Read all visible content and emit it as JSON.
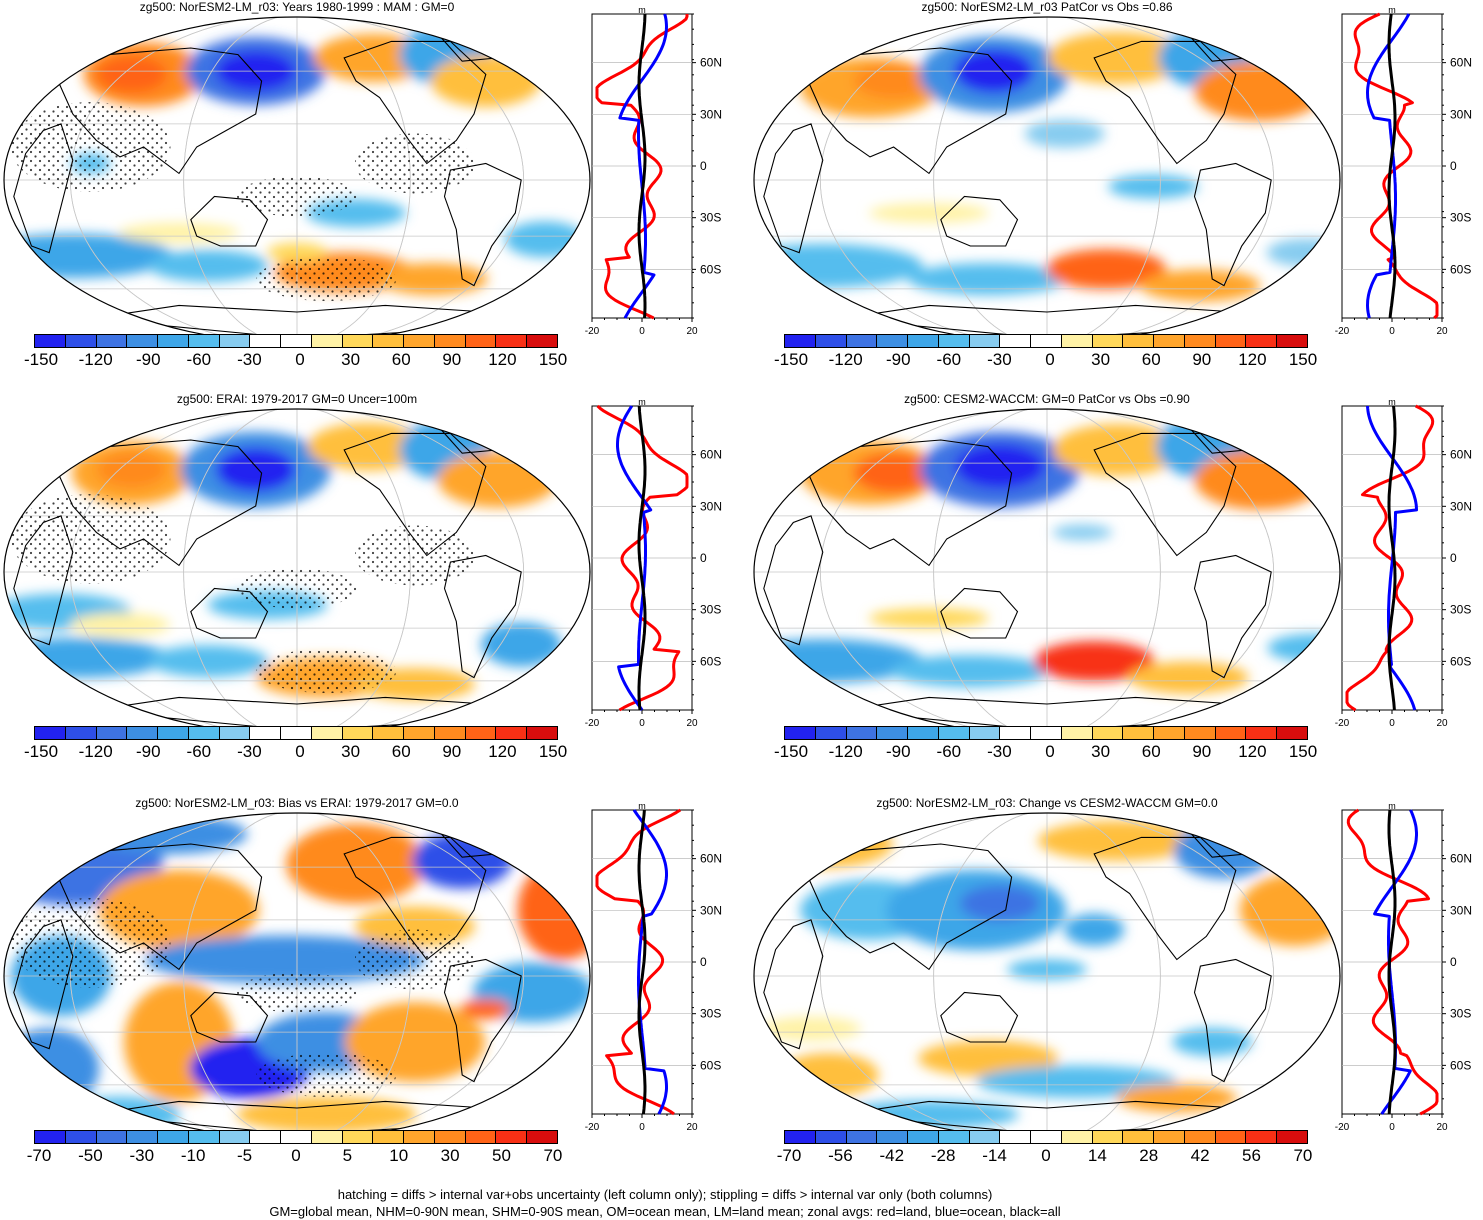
{
  "figure": {
    "panels": [
      {
        "id": "p1",
        "title": "zg500: NorESM2-LM_r03: Years 1980-1999 : MAM : GM=0",
        "scale": "a",
        "xticks": [
          "-20",
          "0",
          "20"
        ],
        "pattern": "climo_model",
        "stipple": true
      },
      {
        "id": "p2",
        "title": "zg500: NorESM2-LM_r03 PatCor vs Obs =0.86",
        "scale": "a",
        "xticks": [
          "-20",
          "0",
          "20"
        ],
        "pattern": "climo_model_smooth",
        "stipple": false
      },
      {
        "id": "p3",
        "title": "zg500: ERAI: 1979-2017 GM=0 Uncer=100m",
        "scale": "a",
        "xticks": [
          "-20",
          "0",
          "20"
        ],
        "pattern": "climo_obs",
        "stipple": true
      },
      {
        "id": "p4",
        "title": "zg500: CESM2-WACCM: GM=0 PatCor vs Obs =0.90",
        "scale": "a",
        "xticks": [
          "-20",
          "0",
          "20"
        ],
        "pattern": "climo_ref",
        "stipple": false
      },
      {
        "id": "p5",
        "title": "zg500: NorESM2-LM_r03: Bias vs ERAI: 1979-2017 GM=0.0",
        "scale": "b",
        "xticks": [
          "-20",
          "0",
          "20"
        ],
        "pattern": "bias",
        "stipple": true
      },
      {
        "id": "p6",
        "title": "zg500: NorESM2-LM_r03: Change vs CESM2-WACCM GM=0.0",
        "scale": "c",
        "xticks": [
          "-20",
          "0",
          "20"
        ],
        "pattern": "change",
        "stipple": false
      }
    ],
    "zonal_unit": "m",
    "lat_labels": [
      "60N",
      "30N",
      "0",
      "30S",
      "60S"
    ],
    "colorbars": {
      "a": [
        "-150",
        "-120",
        "-90",
        "-60",
        "-30",
        "0",
        "30",
        "60",
        "90",
        "120",
        "150"
      ],
      "b": [
        "-70",
        "-50",
        "-30",
        "-10",
        "-5",
        "0",
        "5",
        "10",
        "30",
        "50",
        "70"
      ],
      "c": [
        "-70",
        "-56",
        "-42",
        "-28",
        "-14",
        "0",
        "14",
        "28",
        "42",
        "56",
        "70"
      ]
    },
    "palette": [
      "#2222f0",
      "#2e4fe8",
      "#3e73e3",
      "#3d8fe3",
      "#3ea6e8",
      "#55bdee",
      "#87ccf0",
      "#ffffff",
      "#ffffff",
      "#fff2a6",
      "#ffd85a",
      "#ffbf3c",
      "#ffa52c",
      "#ff8a1f",
      "#ff6317",
      "#f83015",
      "#d80d0d"
    ],
    "line_colors": {
      "land": "#ff0000",
      "ocean": "#0000ff",
      "all": "#000000"
    },
    "footer": [
      "hatching = diffs > internal var+obs uncertainty (left column only); stippling = diffs > internal var only (both columns)",
      "GM=global mean, NHM=0-90N mean, SHM=0-90S mean, OM=ocean mean, LM=land mean; zonal avgs: red=land, blue=ocean, black=all"
    ]
  },
  "chart_data": {
    "type": "heatmap",
    "variable": "zg500",
    "projection": "Robinson, centered on Pacific",
    "panels": [
      {
        "title": "zg500: NorESM2-LM_r03: Years 1980-1999 : MAM : GM=0",
        "levels": [
          -150,
          -120,
          -90,
          -60,
          -30,
          0,
          30,
          60,
          90,
          120,
          150
        ],
        "zonal_xlim": [
          -20,
          20
        ],
        "zonal_ylabels": [
          "60N",
          "30N",
          "0",
          "30S",
          "60S"
        ]
      },
      {
        "title": "zg500: NorESM2-LM_r03 PatCor vs Obs =0.86",
        "pattern_correlation": 0.86,
        "levels": [
          -150,
          -120,
          -90,
          -60,
          -30,
          0,
          30,
          60,
          90,
          120,
          150
        ],
        "zonal_xlim": [
          -20,
          20
        ]
      },
      {
        "title": "zg500: ERAI: 1979-2017 GM=0 Uncer=100m",
        "levels": [
          -150,
          -120,
          -90,
          -60,
          -30,
          0,
          30,
          60,
          90,
          120,
          150
        ],
        "zonal_xlim": [
          -20,
          20
        ]
      },
      {
        "title": "zg500: CESM2-WACCM: GM=0 PatCor vs Obs =0.90",
        "pattern_correlation": 0.9,
        "levels": [
          -150,
          -120,
          -90,
          -60,
          -30,
          0,
          30,
          60,
          90,
          120,
          150
        ],
        "zonal_xlim": [
          -20,
          20
        ]
      },
      {
        "title": "zg500: NorESM2-LM_r03: Bias vs ERAI: 1979-2017 GM=0.0",
        "levels": [
          -70,
          -50,
          -30,
          -10,
          -5,
          0,
          5,
          10,
          30,
          50,
          70
        ],
        "zonal_xlim": [
          -20,
          20
        ]
      },
      {
        "title": "zg500: NorESM2-LM_r03: Change vs CESM2-WACCM GM=0.0",
        "levels": [
          -70,
          -56,
          -42,
          -28,
          -14,
          0,
          14,
          28,
          42,
          56,
          70
        ],
        "zonal_xlim": [
          -20,
          20
        ]
      }
    ],
    "legend": {
      "red": "land",
      "blue": "ocean",
      "black": "all"
    }
  }
}
